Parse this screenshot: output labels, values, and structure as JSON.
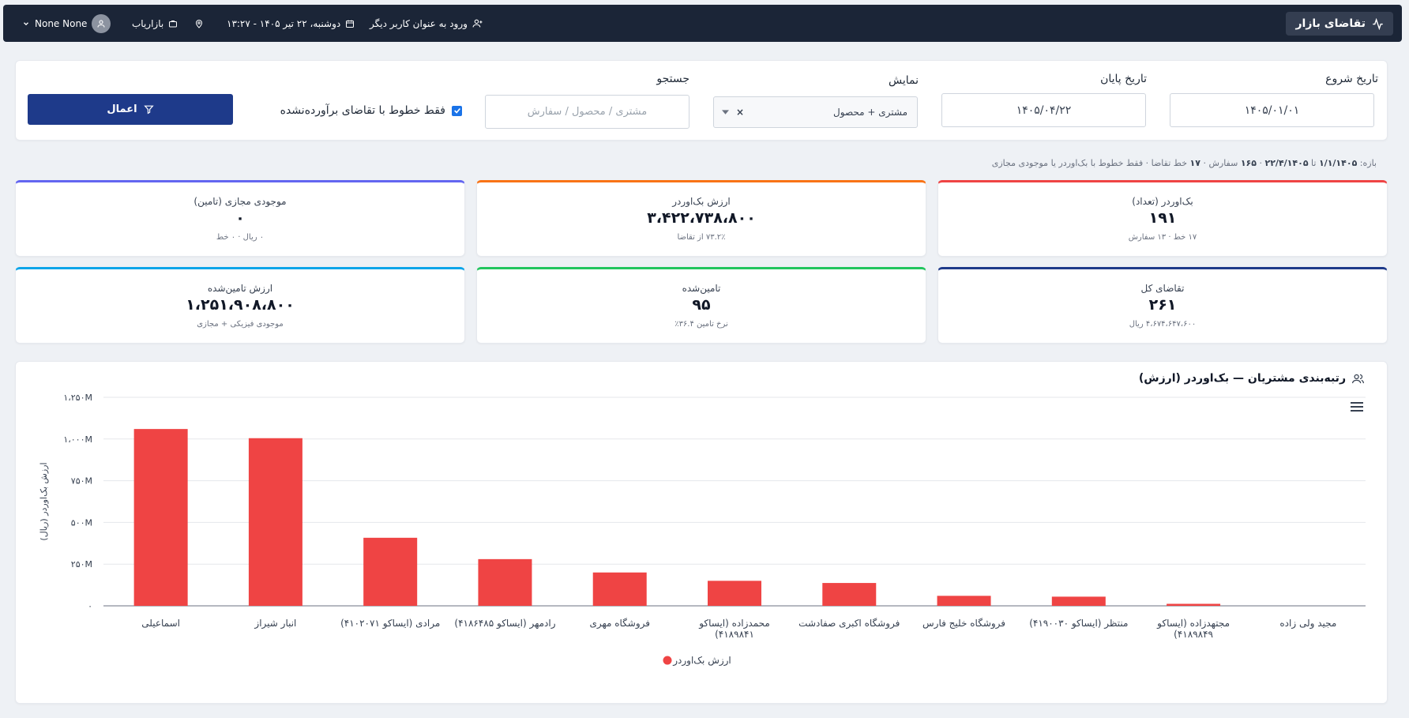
{
  "header": {
    "brand": "تقاضای بازار",
    "impersonate_label": "ورود به عنوان کاربر دیگر",
    "datetime": "دوشنبه، ۲۲ تیر ۱۴۰۵ - ۱۳:۲۷",
    "location_icon": "map-pin-icon",
    "role_label": "بازاریاب",
    "user_name": "None None"
  },
  "filters": {
    "start_label": "تاریخ شروع",
    "start_value": "۱۴۰۵/۰۱/۰۱",
    "end_label": "تاریخ پایان",
    "end_value": "۱۴۰۵/۰۴/۲۲",
    "display_label": "نمایش",
    "display_value": "مشتری + محصول",
    "search_label": "جستجو",
    "search_placeholder": "مشتری / محصول / سفارش",
    "checkbox_label": "فقط خطوط با تقاضای برآورده‌نشده",
    "checkbox_checked": true,
    "apply_label": "اعمال"
  },
  "range_summary": {
    "prefix": "بازه:",
    "from": "۱/۱/۱۴۰۵",
    "to_word": "تا",
    "to": "۲۲/۴/۱۴۰۵",
    "orders_count": "۱۶۵",
    "orders_word": "سفارش ·",
    "lines_count": "۱۷",
    "rest": "خط تقاضا · فقط خطوط با بک‌اوردر یا موجودی مجازی"
  },
  "kpis": [
    {
      "title": "بک‌اوردر (تعداد)",
      "value": "۱۹۱",
      "sub": "۱۷ خط · ۱۳ سفارش",
      "color": "#ef4444"
    },
    {
      "title": "ارزش بک‌اوردر",
      "value": "۳،۴۲۲،۷۳۸،۸۰۰",
      "sub": "۷۳.۲٪ از تقاضا",
      "color": "#f97316"
    },
    {
      "title": "موجودی مجازی (تامین)",
      "value": "۰",
      "sub": "۰ ریال · ۰ خط",
      "color": "#6366f1"
    },
    {
      "title": "تقاضای کل",
      "value": "۲۶۱",
      "sub": "۴،۶۷۴،۶۴۷،۶۰۰ ریال",
      "color": "#1e3a8a"
    },
    {
      "title": "تامین‌شده",
      "value": "۹۵",
      "sub": "نرخ تامین ۳۶.۴٪",
      "color": "#22c55e"
    },
    {
      "title": "ارزش تامین‌شده",
      "value": "۱،۲۵۱،۹۰۸،۸۰۰",
      "sub": "موجودی فیزیکی + مجازی",
      "color": "#0ea5e9"
    }
  ],
  "chart_section": {
    "title": "رتبه‌بندی مشتریان — بک‌اوردر (ارزش)",
    "title_icon": "users-icon",
    "menu_icon": "hamburger-menu-icon"
  },
  "chart_data": {
    "type": "bar",
    "categories": [
      "اسماعیلی",
      "انبار شیراز",
      "مرادی (ایساکو ۴۱۰۲۰۷۱)",
      "رادمهر (ایساکو ۴۱۸۶۴۸۵)",
      "فروشگاه مهری",
      [
        "محمدزاده (ایساکو",
        "۴۱۸۹۸۴۱)"
      ],
      "فروشگاه اکبری صفادشت",
      "فروشگاه خلیج فارس",
      "منتظر (ایساکو ۴۱۹۰۰۳۰)",
      [
        "مجتهدزاده (ایساکو",
        "۴۱۸۹۸۴۹)"
      ],
      "مجید ولی زاده"
    ],
    "series": [
      {
        "name": "ارزش بک‌اوردر",
        "color": "#ef4444",
        "values": [
          1060000000,
          1005000000,
          408000000,
          280000000,
          200000000,
          150000000,
          137000000,
          60000000,
          55000000,
          12000000,
          0
        ]
      }
    ],
    "ylabel": "ارزش بک‌اوردر (ریال)",
    "ylim": [
      0,
      1250000000
    ],
    "yticks": [
      {
        "value": 0,
        "label": "۰"
      },
      {
        "value": 250000000,
        "label": "۲۵۰M"
      },
      {
        "value": 500000000,
        "label": "۵۰۰M"
      },
      {
        "value": 750000000,
        "label": "۷۵۰M"
      },
      {
        "value": 1000000000,
        "label": "۱،۰۰۰M"
      },
      {
        "value": 1250000000,
        "label": "۱،۲۵۰M"
      }
    ],
    "grid": true,
    "legend_position": "bottom"
  }
}
